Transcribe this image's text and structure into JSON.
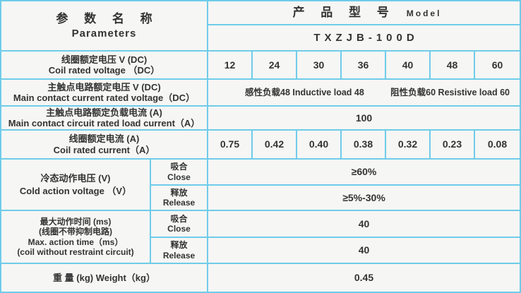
{
  "colors": {
    "border": "#6fccea",
    "cell_bg": "#f6f6f4",
    "text": "#333333"
  },
  "param_header": {
    "title_zh": "参 数 名 称",
    "title_en": "Parameters"
  },
  "model_header": {
    "title_zh": "产 品 型 号",
    "title_en": "Model",
    "value": "TXZJB-100D"
  },
  "rows": {
    "coil_voltage": {
      "label_zh": "线圈额定电压 V (DC)",
      "label_en": "Coil rated voltage （DC）",
      "values": [
        "12",
        "24",
        "30",
        "36",
        "40",
        "48",
        "60"
      ]
    },
    "contact_voltage": {
      "label_zh": "主触点电路额定电压 V (DC)",
      "label_en": "Main contact current rated voltage（DC）",
      "inductive": "感性负载48   Inductive load 48",
      "resistive": "阻性负载60   Resistive load 60"
    },
    "load_current": {
      "label_zh": "主触点电路额定负载电流 (A)",
      "label_en": "Main contact circuit rated load current（A）",
      "value": "100"
    },
    "coil_current": {
      "label_zh": "线圈额定电流 (A)",
      "label_en": "Coil rated current（A）",
      "values": [
        "0.75",
        "0.42",
        "0.40",
        "0.38",
        "0.32",
        "0.23",
        "0.08"
      ]
    },
    "cold_voltage": {
      "label_zh": "冷态动作电压 (V)",
      "label_en": "Cold action voltage （V）",
      "close": {
        "zh": "吸合",
        "en": "Close",
        "value": "≥60%"
      },
      "release": {
        "zh": "释放",
        "en": "Release",
        "value": "≥5%-30%"
      }
    },
    "max_time": {
      "label_zh1": "最大动作时间 (ms)",
      "label_zh2": "(线圈不带抑制电路)",
      "label_en1": "Max. action time（ms）",
      "label_en2": "(coil without restraint circuit)",
      "close": {
        "zh": "吸合",
        "en": "Close",
        "value": "40"
      },
      "release": {
        "zh": "释放",
        "en": "Release",
        "value": "40"
      }
    },
    "weight": {
      "label": "重 量 (kg)    Weight（kg）",
      "value": "0.45"
    }
  }
}
